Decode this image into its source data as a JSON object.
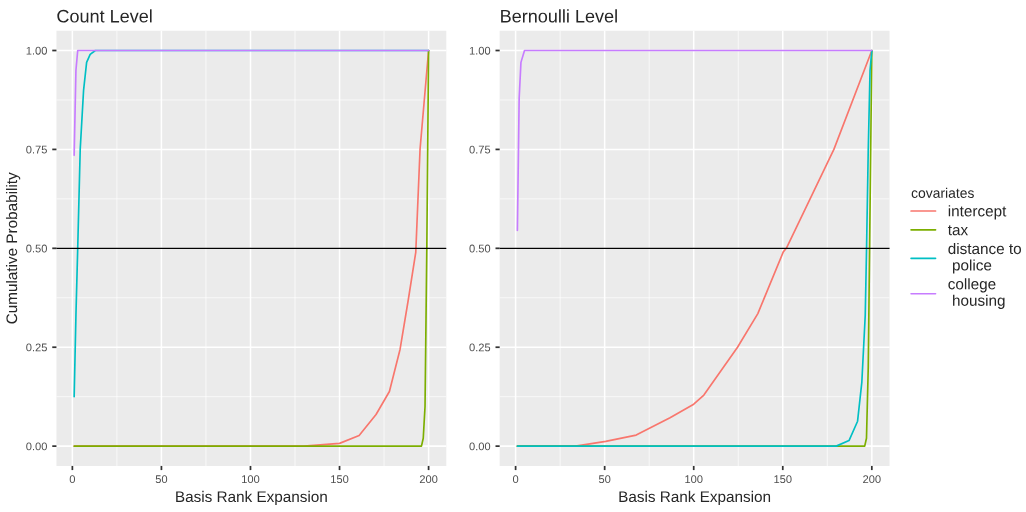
{
  "chart_data": [
    {
      "type": "line",
      "title": "Count Level",
      "xlabel": "Basis Rank Expansion",
      "ylabel": "Cumulative Probability",
      "xlim": [
        -8.95,
        209.95
      ],
      "ylim": [
        -0.05,
        1.05
      ],
      "xticks": [
        0,
        50,
        100,
        150,
        200
      ],
      "yticks": [
        {
          "value": 0,
          "label": "0.00"
        },
        {
          "value": 0.25,
          "label": "0.25"
        },
        {
          "value": 0.5,
          "label": "0.50"
        },
        {
          "value": 0.75,
          "label": "0.75"
        },
        {
          "value": 1,
          "label": "1.00"
        }
      ],
      "grid": true,
      "ref_lines": [
        {
          "axis": "y",
          "value": 0.5,
          "color": "#000000"
        }
      ],
      "series": [
        {
          "color": "#f8766d",
          "x": [
            1,
            130,
            150,
            161,
            170.5,
            178,
            184,
            188.6,
            192.8,
            195.2,
            200
          ],
          "values": [
            0,
            0,
            0.007,
            0.027,
            0.08,
            0.138,
            0.245,
            0.37,
            0.49,
            0.75,
            1
          ]
        },
        {
          "color": "#7cae00",
          "x": [
            1,
            196,
            197,
            198,
            199,
            200
          ],
          "values": [
            0,
            0,
            0.02,
            0.1,
            0.5,
            1
          ]
        },
        {
          "color": "#00bfc4",
          "x": [
            1,
            2,
            3,
            4.4,
            6.3,
            8,
            10,
            12.9,
            200
          ],
          "values": [
            0.125,
            0.33,
            0.5,
            0.75,
            0.9,
            0.97,
            0.99,
            1,
            1
          ]
        },
        {
          "color": "#c77cff",
          "x": [
            1,
            2,
            3,
            200
          ],
          "values": [
            0.735,
            0.95,
            1,
            1
          ]
        }
      ]
    },
    {
      "type": "line",
      "title": "Bernoulli Level",
      "xlabel": "Basis Rank Expansion",
      "legend_title": "covariates",
      "xlim": [
        -8.95,
        209.95
      ],
      "ylim": [
        -0.05,
        1.05
      ],
      "xticks": [
        0,
        50,
        100,
        150,
        200
      ],
      "yticks": [
        {
          "value": 0,
          "label": "0.00"
        },
        {
          "value": 0.25,
          "label": "0.25"
        },
        {
          "value": 0.5,
          "label": "0.50"
        },
        {
          "value": 0.75,
          "label": "0.75"
        },
        {
          "value": 1,
          "label": "1.00"
        }
      ],
      "grid": true,
      "legend": "right",
      "ref_lines": [
        {
          "axis": "y",
          "value": 0.5,
          "color": "#000000"
        }
      ],
      "series": [
        {
          "name": "intercept",
          "color": "#f8766d",
          "x": [
            1,
            33.6,
            50.6,
            67.7,
            86.7,
            100,
            105.7,
            124.6,
            136,
            150.3,
            152,
            178.7,
            200
          ],
          "values": [
            0,
            0,
            0.012,
            0.028,
            0.072,
            0.106,
            0.129,
            0.25,
            0.335,
            0.491,
            0.5,
            0.75,
            1
          ]
        },
        {
          "name": "tax",
          "color": "#7cae00",
          "x": [
            1,
            196,
            197,
            198,
            199,
            200
          ],
          "values": [
            0,
            0,
            0.02,
            0.2,
            0.6,
            1
          ]
        },
        {
          "name": "distance to\n police",
          "color": "#00bfc4",
          "x": [
            1,
            180,
            187.2,
            192,
            194.4,
            196.3,
            197,
            198,
            199,
            200
          ],
          "values": [
            0,
            0,
            0.014,
            0.063,
            0.162,
            0.33,
            0.49,
            0.75,
            0.95,
            1
          ]
        },
        {
          "name": "college\n housing",
          "color": "#c77cff",
          "x": [
            1,
            2,
            3,
            5,
            200
          ],
          "values": [
            0.545,
            0.88,
            0.97,
            1,
            1
          ]
        }
      ]
    }
  ]
}
